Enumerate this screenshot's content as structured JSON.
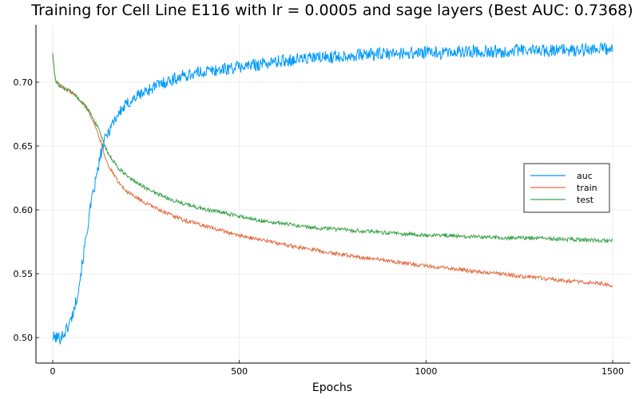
{
  "chart_data": {
    "type": "line",
    "title": "Training for Cell Line E116 with lr = 0.0005 and sage layers (Best AUC: 0.7368)",
    "xlabel": "Epochs",
    "ylabel": "",
    "xlim": [
      0,
      1500
    ],
    "ylim": [
      0.48,
      0.745
    ],
    "xticks": [
      0,
      500,
      1000,
      1500
    ],
    "xtick_labels": [
      "0",
      "500",
      "1000",
      "1500"
    ],
    "yticks": [
      0.5,
      0.55,
      0.6,
      0.65,
      0.7
    ],
    "ytick_labels": [
      "0.50",
      "0.55",
      "0.60",
      "0.65",
      "0.70"
    ],
    "grid": true,
    "legend_position": "right",
    "series": [
      {
        "name": "auc",
        "color": "#009AFA",
        "x": [
          0,
          10,
          20,
          30,
          40,
          50,
          60,
          70,
          80,
          90,
          100,
          110,
          120,
          130,
          140,
          150,
          160,
          175,
          200,
          225,
          250,
          275,
          300,
          350,
          400,
          450,
          500,
          550,
          600,
          650,
          700,
          750,
          800,
          850,
          900,
          950,
          1000,
          1050,
          1100,
          1150,
          1200,
          1250,
          1300,
          1350,
          1400,
          1450,
          1500
        ],
        "y": [
          0.5,
          0.5,
          0.5,
          0.503,
          0.508,
          0.515,
          0.525,
          0.54,
          0.56,
          0.58,
          0.6,
          0.615,
          0.63,
          0.645,
          0.655,
          0.662,
          0.668,
          0.675,
          0.683,
          0.689,
          0.693,
          0.697,
          0.7,
          0.705,
          0.708,
          0.71,
          0.712,
          0.714,
          0.716,
          0.718,
          0.719,
          0.72,
          0.721,
          0.722,
          0.722,
          0.723,
          0.723,
          0.723,
          0.724,
          0.724,
          0.724,
          0.725,
          0.725,
          0.725,
          0.725,
          0.726,
          0.726
        ],
        "noise": 0.005
      },
      {
        "name": "train",
        "color": "#E26F46",
        "x": [
          0,
          5,
          10,
          20,
          30,
          40,
          50,
          60,
          70,
          80,
          90,
          100,
          110,
          120,
          130,
          140,
          150,
          175,
          200,
          250,
          300,
          350,
          400,
          450,
          500,
          550,
          600,
          650,
          700,
          750,
          800,
          850,
          900,
          950,
          1000,
          1050,
          1100,
          1150,
          1200,
          1250,
          1300,
          1350,
          1400,
          1450,
          1500
        ],
        "y": [
          0.723,
          0.705,
          0.7,
          0.697,
          0.695,
          0.694,
          0.692,
          0.69,
          0.687,
          0.684,
          0.68,
          0.675,
          0.669,
          0.661,
          0.652,
          0.642,
          0.634,
          0.622,
          0.614,
          0.605,
          0.598,
          0.592,
          0.588,
          0.584,
          0.58,
          0.577,
          0.574,
          0.571,
          0.569,
          0.566,
          0.564,
          0.562,
          0.56,
          0.558,
          0.556,
          0.555,
          0.553,
          0.551,
          0.55,
          0.548,
          0.547,
          0.545,
          0.544,
          0.543,
          0.541
        ],
        "noise": 0.0015
      },
      {
        "name": "test",
        "color": "#3DA44D",
        "x": [
          0,
          5,
          10,
          20,
          30,
          40,
          50,
          60,
          70,
          80,
          90,
          100,
          110,
          120,
          130,
          140,
          150,
          175,
          200,
          250,
          300,
          350,
          400,
          450,
          500,
          550,
          600,
          650,
          700,
          750,
          800,
          850,
          900,
          950,
          1000,
          1050,
          1100,
          1150,
          1200,
          1250,
          1300,
          1350,
          1400,
          1450,
          1500
        ],
        "y": [
          0.723,
          0.705,
          0.7,
          0.697,
          0.695,
          0.694,
          0.692,
          0.69,
          0.687,
          0.684,
          0.68,
          0.676,
          0.671,
          0.665,
          0.657,
          0.65,
          0.643,
          0.633,
          0.626,
          0.617,
          0.61,
          0.605,
          0.601,
          0.598,
          0.595,
          0.592,
          0.59,
          0.588,
          0.586,
          0.585,
          0.584,
          0.583,
          0.582,
          0.581,
          0.58,
          0.58,
          0.579,
          0.579,
          0.578,
          0.578,
          0.578,
          0.577,
          0.577,
          0.576,
          0.576
        ],
        "noise": 0.0015
      }
    ]
  }
}
